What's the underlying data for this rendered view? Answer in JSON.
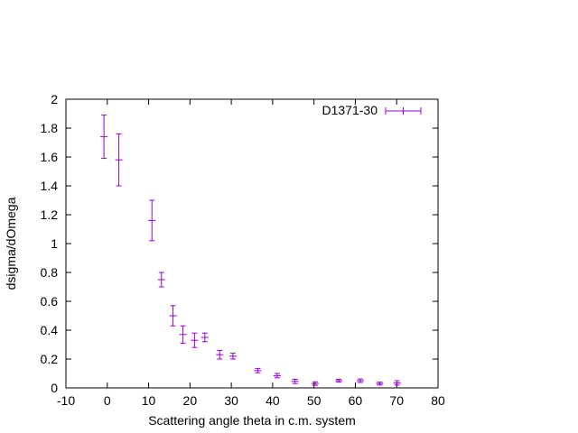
{
  "chart_data": {
    "type": "scatter",
    "xlabel": "Scattering angle theta in c.m. system",
    "ylabel": "dsigma/dOmega",
    "xlim": [
      -10,
      80
    ],
    "ylim": [
      0,
      2
    ],
    "xticks": [
      "-10",
      "0",
      "10",
      "20",
      "30",
      "40",
      "50",
      "60",
      "70",
      "80"
    ],
    "yticks": [
      "0",
      "0.2",
      "0.4",
      "0.6",
      "0.8",
      "1",
      "1.2",
      "1.4",
      "1.6",
      "1.8",
      "2"
    ],
    "grid": false,
    "legend": "top-right",
    "series": [
      {
        "name": "D1371-30",
        "color": "#9400d3",
        "points": [
          {
            "x": -0.8,
            "y": 1.74,
            "err": 0.15
          },
          {
            "x": 2.8,
            "y": 1.58,
            "err": 0.18
          },
          {
            "x": 10.8,
            "y": 1.16,
            "err": 0.14
          },
          {
            "x": 13.1,
            "y": 0.75,
            "err": 0.05
          },
          {
            "x": 15.9,
            "y": 0.5,
            "err": 0.07
          },
          {
            "x": 18.3,
            "y": 0.37,
            "err": 0.06
          },
          {
            "x": 21.1,
            "y": 0.33,
            "err": 0.05
          },
          {
            "x": 23.6,
            "y": 0.35,
            "err": 0.03
          },
          {
            "x": 27.2,
            "y": 0.23,
            "err": 0.03
          },
          {
            "x": 30.4,
            "y": 0.22,
            "err": 0.02
          },
          {
            "x": 36.4,
            "y": 0.12,
            "err": 0.015
          },
          {
            "x": 41.1,
            "y": 0.085,
            "err": 0.015
          },
          {
            "x": 45.4,
            "y": 0.045,
            "err": 0.015
          },
          {
            "x": 50.3,
            "y": 0.03,
            "err": 0.012
          },
          {
            "x": 56.0,
            "y": 0.05,
            "err": 0.01
          },
          {
            "x": 61.2,
            "y": 0.05,
            "err": 0.012
          },
          {
            "x": 65.9,
            "y": 0.03,
            "err": 0.01
          },
          {
            "x": 70.1,
            "y": 0.035,
            "err": 0.015
          }
        ]
      }
    ]
  }
}
